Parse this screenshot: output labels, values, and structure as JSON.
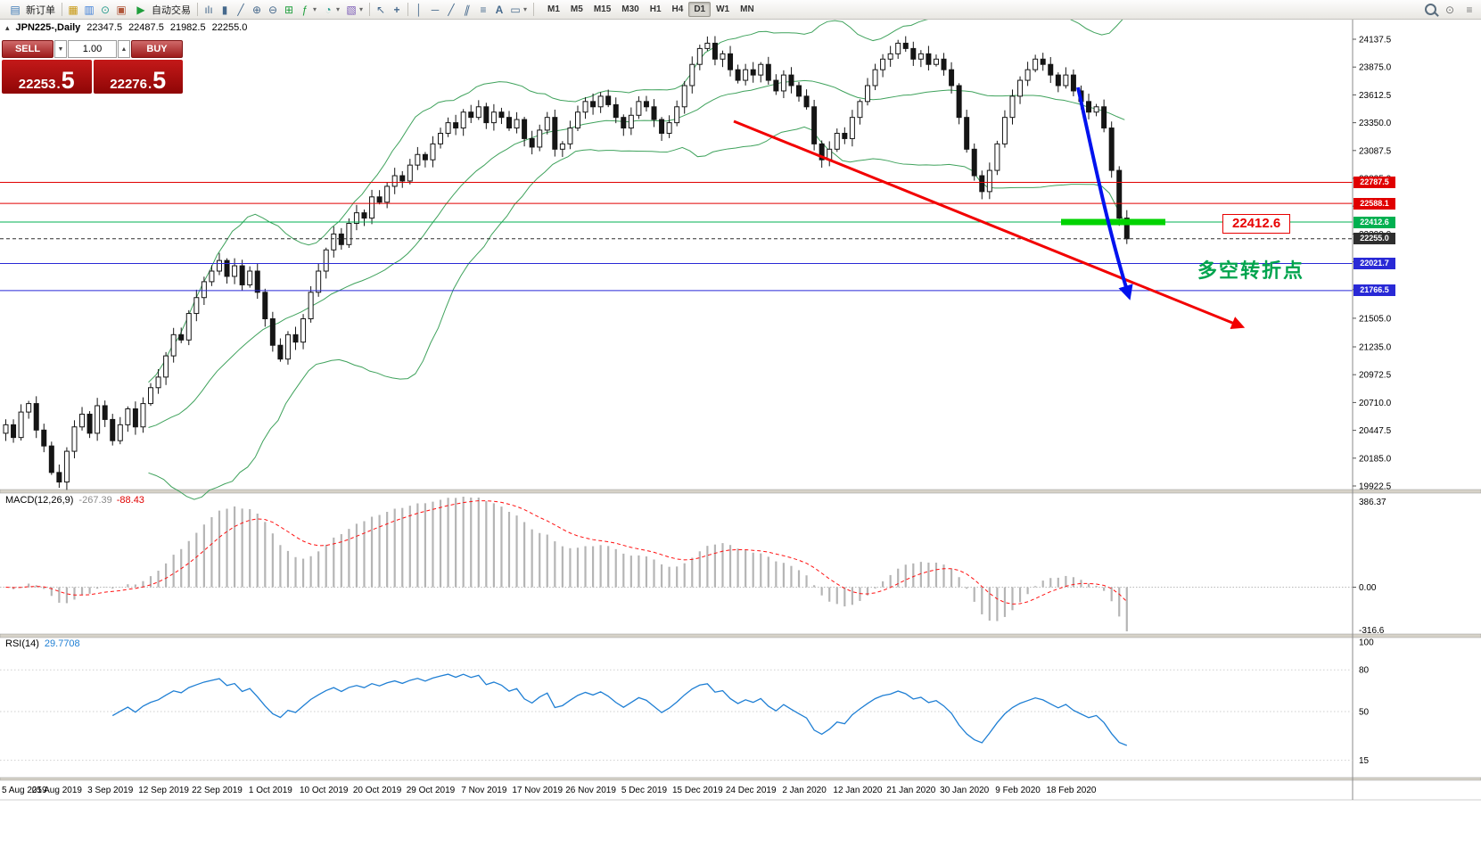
{
  "toolbar": {
    "new_order_label": "新订单",
    "autotrade_label": "自动交易",
    "timeframes": [
      "M1",
      "M5",
      "M15",
      "M30",
      "H1",
      "H4",
      "D1",
      "W1",
      "MN"
    ],
    "active_timeframe": "D1",
    "icon_names": [
      "new-order",
      "chart-window",
      "profiles",
      "market-watch",
      "autotrade-play",
      "bar-chart",
      "candlestick-chart",
      "line-chart",
      "zoom-in",
      "zoom-out",
      "grid",
      "indicators",
      "objects",
      "period",
      "cursor",
      "crosshair",
      "vertical-line",
      "horizontal-line",
      "trendline",
      "channel",
      "fibonacci",
      "text",
      "label",
      "search",
      "data-window",
      "scroll"
    ]
  },
  "quote_line": {
    "symbol": "JPN225-,Daily",
    "open": "22347.5",
    "high": "22487.5",
    "low": "21982.5",
    "close": "22255.0"
  },
  "trade_panel": {
    "sell_label": "SELL",
    "buy_label": "BUY",
    "volume": "1.00",
    "sell_price": "22253",
    "sell_price_big": "5",
    "buy_price": "22276",
    "buy_price_big": "5"
  },
  "annotations": {
    "support_label": "22412.6",
    "turning_point": "多空转折点"
  },
  "chart_data": {
    "type": "candlestick",
    "symbol": "JPN225-",
    "timeframe": "Daily",
    "title": "JPN225-,Daily 22347.5 22487.5 21982.5 22255.0",
    "price_axis_ticks": [
      "24137.5",
      "23875.0",
      "23612.5",
      "23350.0",
      "23087.5",
      "22825.0",
      "22562.5",
      "22300.0",
      "22037.5",
      "21775.0",
      "21505.0",
      "21235.0",
      "20972.5",
      "20710.0",
      "20447.5",
      "20185.0",
      "19922.5"
    ],
    "dates": [
      "5 Aug 2019",
      "25 Aug 2019",
      "3 Sep 2019",
      "12 Sep 2019",
      "22 Sep 2019",
      "1 Oct 2019",
      "10 Oct 2019",
      "20 Oct 2019",
      "29 Oct 2019",
      "7 Nov 2019",
      "17 Nov 2019",
      "26 Nov 2019",
      "5 Dec 2019",
      "15 Dec 2019",
      "24 Dec 2019",
      "2 Jan 2020",
      "12 Jan 2020",
      "21 Jan 2020",
      "30 Jan 2020",
      "9 Feb 2020",
      "18 Feb 2020"
    ],
    "closes": [
      20500,
      20380,
      20620,
      20700,
      20450,
      20300,
      20050,
      19960,
      20250,
      20480,
      20600,
      20420,
      20680,
      20550,
      20350,
      20500,
      20650,
      20480,
      20700,
      20850,
      20950,
      21150,
      21350,
      21300,
      21550,
      21700,
      21850,
      21950,
      22050,
      21900,
      22000,
      21820,
      21950,
      21750,
      21500,
      21250,
      21120,
      21350,
      21280,
      21500,
      21750,
      21950,
      22150,
      22300,
      22200,
      22400,
      22500,
      22450,
      22650,
      22600,
      22750,
      22850,
      22800,
      22950,
      23050,
      23000,
      23150,
      23250,
      23350,
      23300,
      23450,
      23400,
      23500,
      23350,
      23450,
      23400,
      23300,
      23380,
      23200,
      23120,
      23280,
      23400,
      23100,
      23150,
      23300,
      23450,
      23550,
      23500,
      23600,
      23520,
      23400,
      23300,
      23420,
      23550,
      23500,
      23380,
      23250,
      23350,
      23500,
      23700,
      23900,
      24050,
      24100,
      23950,
      24000,
      23850,
      23750,
      23850,
      23800,
      23900,
      23750,
      23650,
      23800,
      23700,
      23600,
      23500,
      23150,
      23000,
      23100,
      23250,
      23200,
      23400,
      23550,
      23700,
      23850,
      23950,
      24000,
      24100,
      24050,
      23950,
      24000,
      23900,
      23950,
      23850,
      23700,
      23400,
      23100,
      22850,
      22700,
      22900,
      23150,
      23400,
      23600,
      23750,
      23850,
      23950,
      23900,
      23800,
      23700,
      23800,
      23650,
      23550,
      23450,
      23500,
      23300,
      22900,
      22450,
      22255
    ],
    "overlays": {
      "bollinger": {
        "period": 20,
        "deviation": 2,
        "color": "#3fa25c"
      }
    },
    "levels": [
      {
        "price": 22787.5,
        "label": "22787.5",
        "color": "#e00000",
        "style": "solid"
      },
      {
        "price": 22588.1,
        "label": "22588.1",
        "color": "#e00000",
        "style": "solid"
      },
      {
        "price": 22412.6,
        "label": "22412.6",
        "color": "#00b050",
        "style": "solid"
      },
      {
        "price": 22255.0,
        "label": "22255.0",
        "color": "#2e2e2e",
        "style": "dashed"
      },
      {
        "price": 22021.7,
        "label": "22021.7",
        "color": "#2929d6",
        "style": "solid"
      },
      {
        "price": 21766.5,
        "label": "21766.5",
        "color": "#2929d6",
        "style": "solid"
      }
    ],
    "macd": {
      "label": "MACD(12,26,9)",
      "value_main": "-267.39",
      "value_signal": "-88.43",
      "axis_top": "386.37",
      "axis_zero": "0.00",
      "axis_bottom": "-316.6"
    },
    "rsi": {
      "label": "RSI(14)",
      "value": "29.7708",
      "axis": [
        "100",
        "80",
        "50",
        "15"
      ]
    }
  }
}
